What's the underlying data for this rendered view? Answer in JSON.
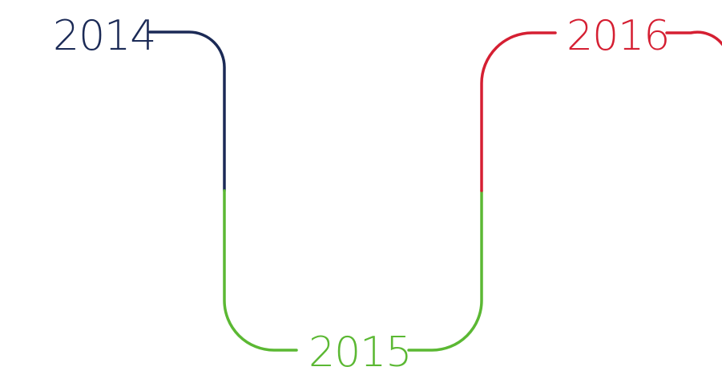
{
  "timeline": {
    "milestones": [
      {
        "label": "2014",
        "color": "#1b2a56"
      },
      {
        "label": "2015",
        "color": "#5bb833"
      },
      {
        "label": "2016",
        "color": "#d51f32"
      }
    ]
  }
}
